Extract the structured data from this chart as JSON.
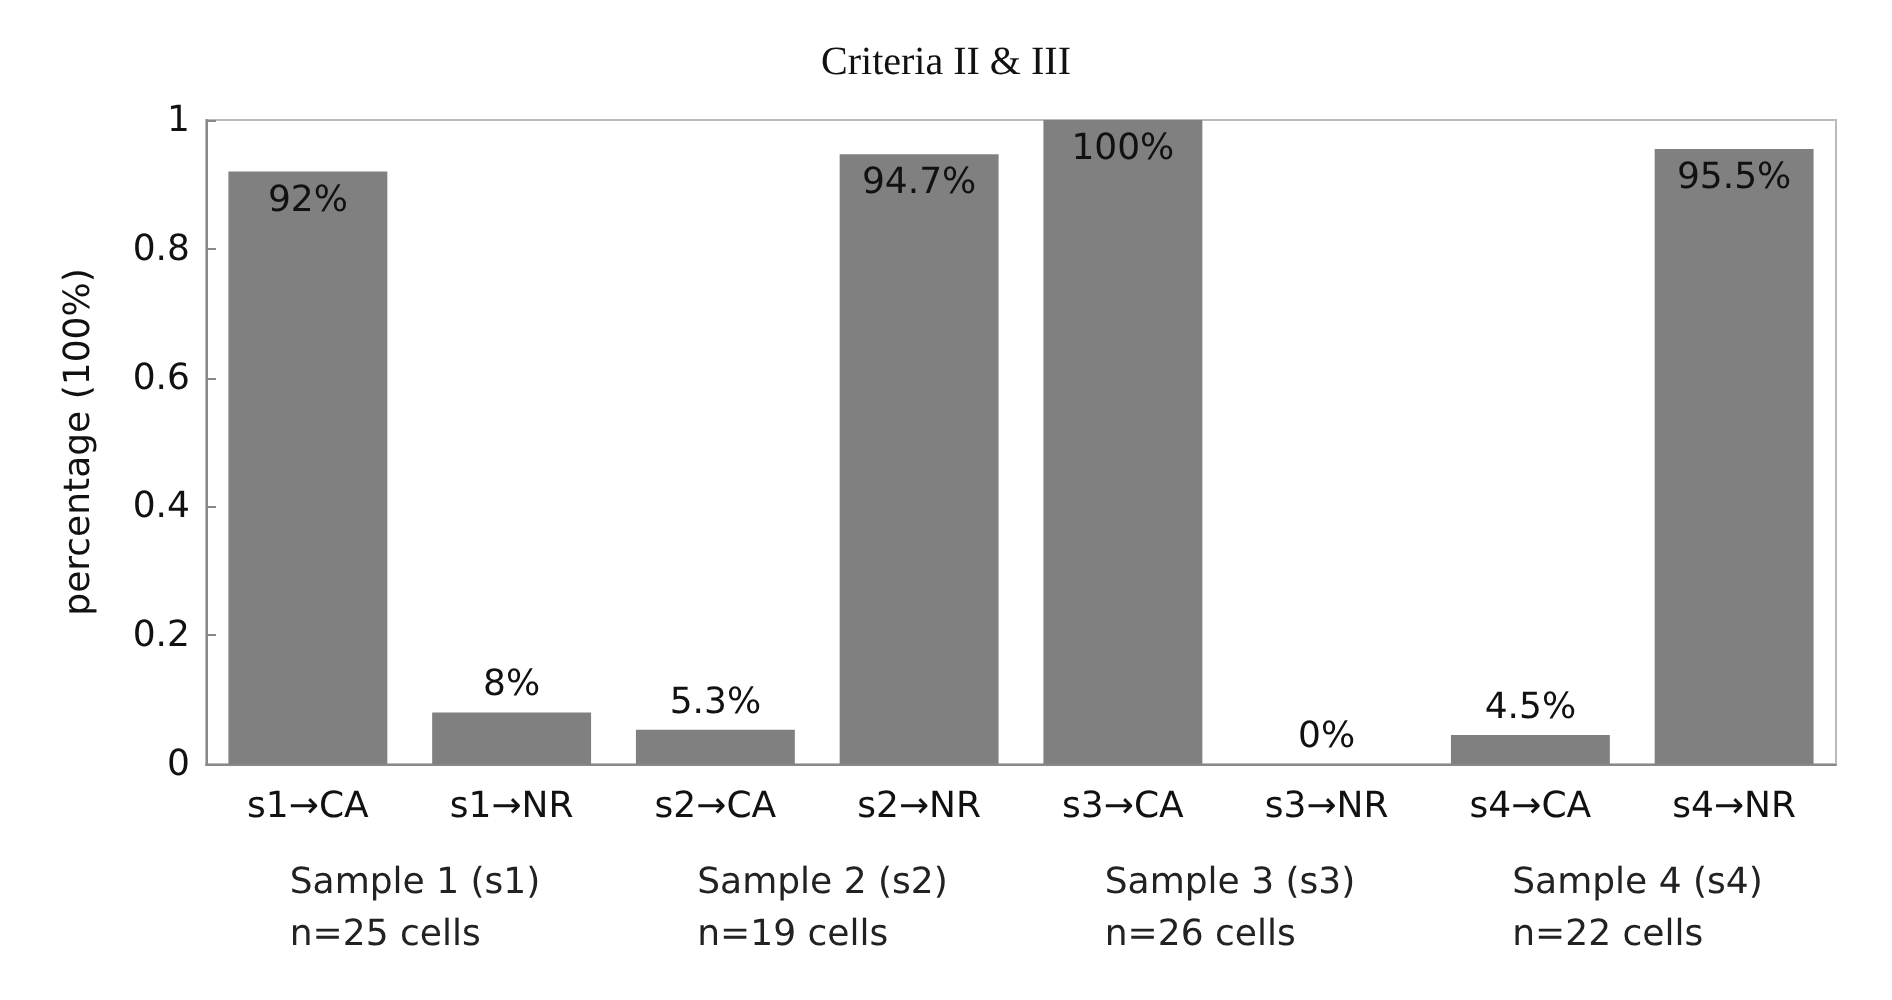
{
  "chart_data": {
    "type": "bar",
    "title": "Criteria II & III",
    "ylabel": "percentage (100%)",
    "categories": [
      "s1→CA",
      "s1→NR",
      "s2→CA",
      "s2→NR",
      "s3→CA",
      "s3→NR",
      "s4→CA",
      "s4→NR"
    ],
    "values": [
      0.92,
      0.08,
      0.053,
      0.947,
      1,
      0,
      0.045,
      0.955
    ],
    "value_labels": [
      "92%",
      "8%",
      "5.3%",
      "94.7%",
      "100%",
      "0%",
      "4.5%",
      "95.5%"
    ],
    "color": "#808080",
    "ylim": [
      0,
      1
    ],
    "yticks": [
      0,
      0.2,
      0.4,
      0.6,
      0.8,
      1
    ],
    "grid": false,
    "annotations": [
      "Sample 1 (s1)\nn=25 cells",
      "Sample 2 (s2)\nn=19 cells",
      "Sample 3 (s3)\nn=26 cells",
      "Sample 4 (s4)\nn=22 cells"
    ]
  }
}
